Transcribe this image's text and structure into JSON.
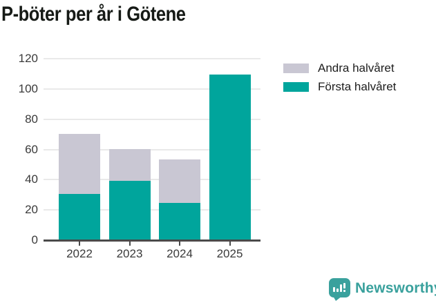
{
  "header": {
    "title": "P-böter per år i Götene"
  },
  "chart_data": {
    "type": "bar",
    "stacked": true,
    "title": "P-böter per år i Götene",
    "categories": [
      "2022",
      "2023",
      "2024",
      "2025"
    ],
    "series": [
      {
        "name": "Första halvåret",
        "color": "#00A59C",
        "values": [
          30,
          39,
          24,
          109
        ]
      },
      {
        "name": "Andra halvåret",
        "color": "#C9C7D3",
        "values": [
          40,
          21,
          29,
          0
        ]
      }
    ],
    "totals": [
      70,
      60,
      53,
      109
    ],
    "xlabel": "",
    "ylabel": "",
    "ylim": [
      0,
      120
    ],
    "yticks": [
      0,
      20,
      40,
      60,
      80,
      100,
      120
    ],
    "grid": true,
    "legend_position": "top-right",
    "legend_order": [
      "Andra halvåret",
      "Första halvåret"
    ],
    "axis_color": "#4A4A4A",
    "gridline_color": "#E9E9E9",
    "tick_label_color": "#3A3A3A"
  },
  "legend": {
    "items": [
      {
        "label": "Andra halvåret",
        "color": "#C9C7D3"
      },
      {
        "label": "Första halvåret",
        "color": "#00A59C"
      }
    ]
  },
  "footer": {
    "brand": "Newsworthy",
    "brand_color": "#3AA19D",
    "logo_icon": "bar-chart-exclamation-speech-bubble"
  }
}
